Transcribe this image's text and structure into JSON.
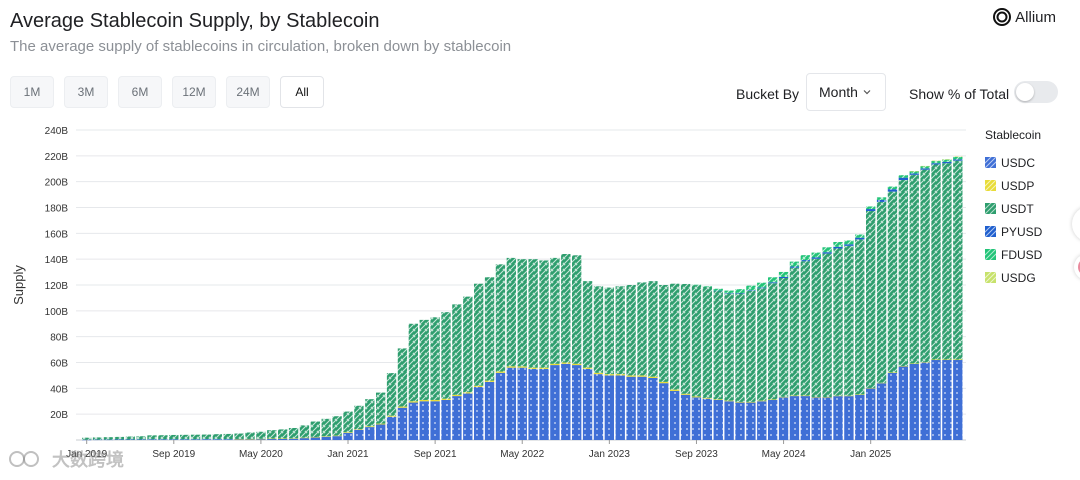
{
  "header": {
    "title": "Average Stablecoin Supply, by Stablecoin",
    "subtitle": "The average supply of stablecoins in circulation, broken down by stablecoin",
    "brand": "Allium"
  },
  "controls": {
    "ranges": [
      {
        "label": "1M",
        "active": false
      },
      {
        "label": "3M",
        "active": false
      },
      {
        "label": "6M",
        "active": false
      },
      {
        "label": "12M",
        "active": false
      },
      {
        "label": "24M",
        "active": false
      },
      {
        "label": "All",
        "active": true
      }
    ],
    "bucket_label": "Bucket By",
    "bucket_value": "Month",
    "percent_label": "Show % of Total",
    "percent_on": false
  },
  "watermark": "大数跨境",
  "chart_data": {
    "type": "bar",
    "stacked": true,
    "ylabel": "Supply",
    "yticks": [
      "20B",
      "40B",
      "60B",
      "80B",
      "100B",
      "120B",
      "140B",
      "160B",
      "180B",
      "200B",
      "220B",
      "240B"
    ],
    "ylim": [
      0,
      240
    ],
    "grid": true,
    "start_month": "2019-01",
    "x_tick_labels": [
      {
        "label": "Jan 2019",
        "index": 0
      },
      {
        "label": "Sep 2019",
        "index": 8
      },
      {
        "label": "May 2020",
        "index": 16
      },
      {
        "label": "Jan 2021",
        "index": 24
      },
      {
        "label": "Sep 2021",
        "index": 32
      },
      {
        "label": "May 2022",
        "index": 40
      },
      {
        "label": "Jan 2023",
        "index": 48
      },
      {
        "label": "Sep 2023",
        "index": 56
      },
      {
        "label": "May 2024",
        "index": 64
      },
      {
        "label": "Jan 2025",
        "index": 72
      }
    ],
    "legend_title": "Stablecoin",
    "legend_position": "right",
    "series": [
      {
        "name": "USDC",
        "color": "#3f6fd6",
        "values": [
          0.2,
          0.3,
          0.3,
          0.4,
          0.4,
          0.4,
          0.5,
          0.5,
          0.5,
          0.5,
          0.5,
          0.6,
          0.6,
          0.6,
          0.7,
          0.7,
          0.8,
          0.9,
          1.0,
          1.1,
          1.5,
          2.0,
          2.5,
          3.0,
          5.5,
          8,
          10,
          12,
          18,
          25,
          29,
          30,
          30,
          31,
          34,
          36,
          41,
          45,
          52,
          56,
          56,
          55,
          55,
          58,
          59,
          58,
          55,
          51,
          50,
          50,
          49,
          49,
          48,
          44,
          38,
          35,
          33,
          32,
          31,
          30,
          29,
          29,
          30,
          31,
          33,
          34,
          34,
          33,
          33,
          34,
          34,
          35,
          40,
          44,
          52,
          57,
          59,
          60,
          62,
          62,
          62
        ]
      },
      {
        "name": "USDP",
        "color": "#e8dc39",
        "values": [
          0,
          0,
          0,
          0,
          0,
          0,
          0,
          0,
          0,
          0,
          0,
          0,
          0,
          0,
          0.1,
          0.1,
          0.1,
          0.2,
          0.2,
          0.2,
          0.3,
          0.3,
          0.4,
          0.4,
          0.5,
          0.5,
          0.6,
          0.7,
          0.8,
          0.9,
          1.0,
          1.0,
          1.0,
          1.0,
          1.0,
          1.0,
          1.0,
          1.0,
          1.0,
          1.0,
          1.0,
          1.0,
          1.0,
          1.0,
          1.0,
          1.0,
          1.0,
          1.0,
          1.0,
          1.0,
          1.0,
          1.0,
          1.0,
          1.0,
          1.0,
          0.8,
          0.7,
          0.6,
          0.5,
          0.5,
          0.5,
          0.5,
          0.5,
          0.4,
          0.4,
          0.4,
          0.4,
          0.3,
          0.3,
          0.3,
          0.3,
          0.3,
          0.3,
          0.3,
          0.3,
          0.3,
          0.3,
          0.3,
          0.3,
          0.3,
          0.3
        ]
      },
      {
        "name": "USDT",
        "color": "#2e9e6e",
        "values": [
          1.6,
          1.7,
          1.9,
          2.0,
          2.3,
          2.5,
          3.1,
          3.2,
          3.4,
          3.5,
          3.6,
          3.6,
          3.9,
          4.1,
          4.2,
          5.0,
          5.5,
          6.5,
          7.0,
          8.0,
          9.5,
          12,
          13.5,
          15,
          16,
          18,
          21,
          24,
          33,
          45,
          60,
          62,
          64,
          67,
          70,
          74,
          79,
          80,
          83,
          84,
          83,
          84,
          83,
          82,
          84,
          84,
          67,
          67,
          67,
          68,
          70,
          72,
          74,
          75,
          82,
          85,
          86,
          86,
          84,
          83,
          84,
          86,
          87,
          90,
          92,
          99,
          104,
          107,
          111,
          114,
          116,
          120,
          137,
          140,
          140,
          144,
          146,
          149,
          151,
          152,
          154
        ]
      },
      {
        "name": "PYUSD",
        "color": "#1f5fcf",
        "values": [
          0,
          0,
          0,
          0,
          0,
          0,
          0,
          0,
          0,
          0,
          0,
          0,
          0,
          0,
          0,
          0,
          0,
          0,
          0,
          0,
          0,
          0,
          0,
          0,
          0,
          0,
          0,
          0,
          0,
          0,
          0,
          0,
          0,
          0,
          0,
          0,
          0,
          0,
          0,
          0,
          0,
          0,
          0,
          0,
          0,
          0,
          0,
          0,
          0,
          0,
          0,
          0,
          0,
          0,
          0,
          0,
          0,
          0,
          0.1,
          0.2,
          0.3,
          0.5,
          0.5,
          0.7,
          0.8,
          0.9,
          0.9,
          1.0,
          1.1,
          1.2,
          1.2,
          1.3,
          1.5,
          1.6,
          1.9,
          1.8,
          1.0,
          1.0,
          1.0,
          1.0,
          1.0
        ]
      },
      {
        "name": "FDUSD",
        "color": "#22c478",
        "values": [
          0,
          0,
          0,
          0,
          0,
          0,
          0,
          0,
          0,
          0,
          0,
          0,
          0,
          0,
          0,
          0,
          0,
          0,
          0,
          0,
          0,
          0,
          0,
          0,
          0,
          0,
          0,
          0,
          0,
          0,
          0,
          0,
          0,
          0,
          0,
          0,
          0,
          0,
          0,
          0,
          0,
          0,
          0,
          0,
          0,
          0,
          0,
          0,
          0,
          0,
          0,
          0,
          0,
          0,
          0,
          0,
          0.5,
          0.5,
          1.5,
          2.0,
          3.0,
          3.5,
          3.8,
          3.9,
          3.9,
          3.8,
          3.8,
          3.8,
          3.8,
          3.8,
          3.0,
          2.5,
          2.0,
          2.0,
          2.0,
          1.9,
          1.8,
          1.8,
          1.8,
          1.8,
          1.8
        ]
      },
      {
        "name": "USDG",
        "color": "#c7e26b",
        "values": [
          0,
          0,
          0,
          0,
          0,
          0,
          0,
          0,
          0,
          0,
          0,
          0,
          0,
          0,
          0,
          0,
          0,
          0,
          0,
          0,
          0,
          0,
          0,
          0,
          0,
          0,
          0,
          0,
          0,
          0,
          0,
          0,
          0,
          0,
          0,
          0,
          0,
          0,
          0,
          0,
          0,
          0,
          0,
          0,
          0,
          0,
          0,
          0,
          0,
          0,
          0,
          0,
          0,
          0,
          0,
          0,
          0,
          0,
          0,
          0,
          0,
          0,
          0,
          0,
          0,
          0,
          0,
          0,
          0,
          0,
          0,
          0,
          0,
          0,
          0,
          0,
          0.05,
          0.1,
          0.2,
          0.3,
          0.4
        ]
      }
    ]
  }
}
